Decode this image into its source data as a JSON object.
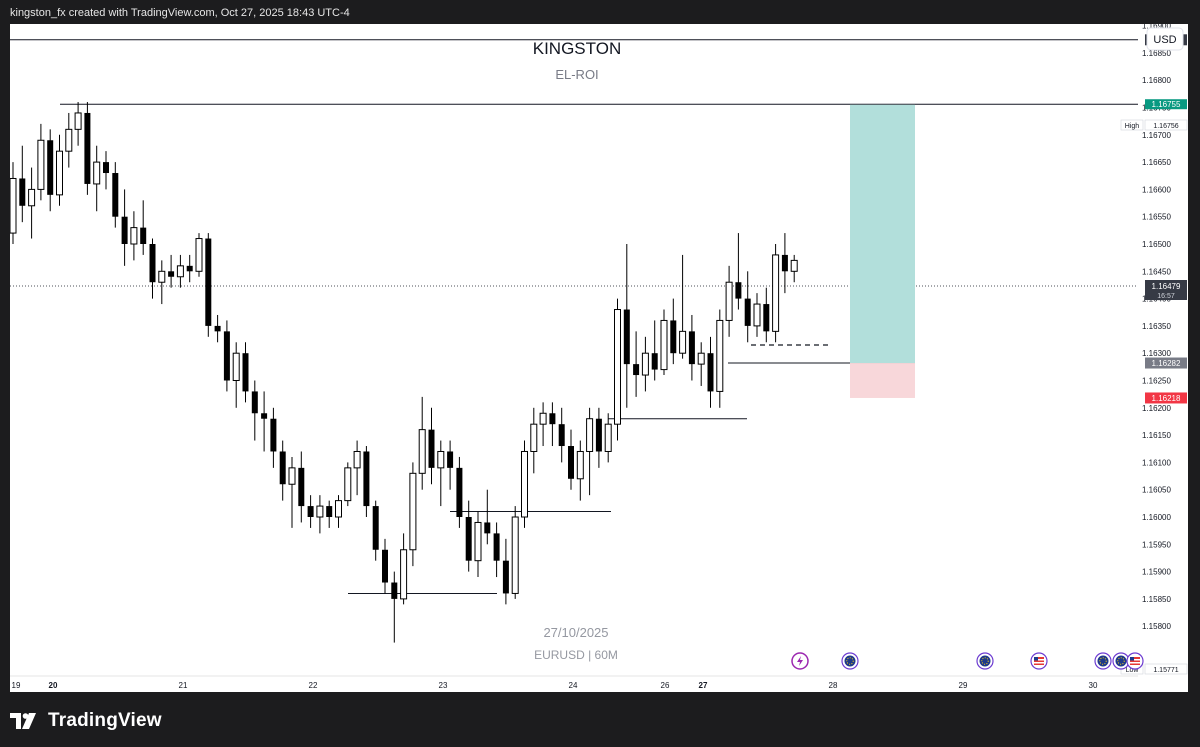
{
  "header": {
    "caption": "kingston_fx created with TradingView.com, Oct 27, 2025 18:43 UTC-4"
  },
  "chart_header": {
    "title": "KINGSTON",
    "subtitle": "EL-ROI",
    "currency_button": "USD"
  },
  "watermark": {
    "date": "27/10/2025",
    "symbol": "EURUSD | 60M"
  },
  "footer": {
    "brand": "TradingView"
  },
  "badges": {
    "top": "1.16874",
    "high_label": "High",
    "high_value": "1.16756",
    "target": "1.16755",
    "last_price": "1.16479",
    "countdown": "16:57",
    "entry": "1.16282",
    "stop": "1.16218",
    "low_label": "Low",
    "low_value": "1.15771"
  },
  "event_icons": [
    "lightning-icon",
    "globe-flag-icon",
    "globe-flag-icon",
    "us-flag-icon",
    "globe-flag-icon",
    "globe-flag-icon",
    "us-flag-icon"
  ],
  "chart_data": {
    "type": "candlestick",
    "symbol": "EURUSD",
    "timeframe": "60M",
    "y_axis": {
      "min": 1.1577,
      "max": 1.1695,
      "tick_labels": [
        "1.15800",
        "1.15850",
        "1.15900",
        "1.15950",
        "1.16000",
        "1.16050",
        "1.16100",
        "1.16150",
        "1.16200",
        "1.16250",
        "1.16300",
        "1.16350",
        "1.16400",
        "1.16450",
        "1.16500",
        "1.16550",
        "1.16600",
        "1.16650",
        "1.16700",
        "1.16750",
        "1.16800",
        "1.16850",
        "1.16900"
      ]
    },
    "x_axis": {
      "tick_labels": [
        "19",
        "20",
        "21",
        "22",
        "23",
        "24",
        "26",
        "27",
        "28",
        "29",
        "30"
      ],
      "bold_labels": [
        "20",
        "27"
      ]
    },
    "candles": [
      [
        1.1652,
        1.1665,
        1.165,
        1.1662
      ],
      [
        1.1662,
        1.1668,
        1.1654,
        1.1657
      ],
      [
        1.1657,
        1.1664,
        1.1651,
        1.166
      ],
      [
        1.166,
        1.1672,
        1.1658,
        1.1669
      ],
      [
        1.1669,
        1.1671,
        1.1656,
        1.1659
      ],
      [
        1.1659,
        1.167,
        1.1657,
        1.1667
      ],
      [
        1.1667,
        1.1674,
        1.1664,
        1.1671
      ],
      [
        1.1671,
        1.1676,
        1.1668,
        1.1674
      ],
      [
        1.1674,
        1.1676,
        1.1659,
        1.1661
      ],
      [
        1.1661,
        1.1668,
        1.1656,
        1.1665
      ],
      [
        1.1665,
        1.1667,
        1.166,
        1.1663
      ],
      [
        1.1663,
        1.1665,
        1.1653,
        1.1655
      ],
      [
        1.1655,
        1.166,
        1.1646,
        1.165
      ],
      [
        1.165,
        1.1656,
        1.1647,
        1.1653
      ],
      [
        1.1653,
        1.1658,
        1.1648,
        1.165
      ],
      [
        1.165,
        1.1651,
        1.164,
        1.1643
      ],
      [
        1.1643,
        1.1647,
        1.1639,
        1.1645
      ],
      [
        1.1645,
        1.1648,
        1.1642,
        1.1644
      ],
      [
        1.1644,
        1.1648,
        1.1642,
        1.1646
      ],
      [
        1.1646,
        1.1648,
        1.1643,
        1.1645
      ],
      [
        1.1645,
        1.1652,
        1.1644,
        1.1651
      ],
      [
        1.1651,
        1.1652,
        1.1633,
        1.1635
      ],
      [
        1.1635,
        1.1637,
        1.1632,
        1.1634
      ],
      [
        1.1634,
        1.1636,
        1.1623,
        1.1625
      ],
      [
        1.1625,
        1.1632,
        1.162,
        1.163
      ],
      [
        1.163,
        1.1632,
        1.1621,
        1.1623
      ],
      [
        1.1623,
        1.1625,
        1.1614,
        1.1619
      ],
      [
        1.1619,
        1.1623,
        1.1612,
        1.1618
      ],
      [
        1.1618,
        1.162,
        1.1609,
        1.1612
      ],
      [
        1.1612,
        1.1614,
        1.1603,
        1.1606
      ],
      [
        1.1606,
        1.1611,
        1.1598,
        1.1609
      ],
      [
        1.1609,
        1.1612,
        1.1599,
        1.1602
      ],
      [
        1.1602,
        1.1604,
        1.1598,
        1.16
      ],
      [
        1.16,
        1.1604,
        1.1597,
        1.1602
      ],
      [
        1.1602,
        1.1603,
        1.1598,
        1.16
      ],
      [
        1.16,
        1.1604,
        1.1598,
        1.1603
      ],
      [
        1.1603,
        1.161,
        1.1602,
        1.1609
      ],
      [
        1.1609,
        1.1614,
        1.1604,
        1.1612
      ],
      [
        1.1612,
        1.1613,
        1.16,
        1.1602
      ],
      [
        1.1602,
        1.1603,
        1.1592,
        1.1594
      ],
      [
        1.1594,
        1.1596,
        1.1586,
        1.1588
      ],
      [
        1.1588,
        1.159,
        1.1577,
        1.1585
      ],
      [
        1.1585,
        1.1597,
        1.1584,
        1.1594
      ],
      [
        1.1594,
        1.161,
        1.1591,
        1.1608
      ],
      [
        1.1608,
        1.1622,
        1.1605,
        1.1616
      ],
      [
        1.1616,
        1.162,
        1.1606,
        1.1609
      ],
      [
        1.1609,
        1.1614,
        1.1602,
        1.1612
      ],
      [
        1.1612,
        1.1614,
        1.1605,
        1.1609
      ],
      [
        1.1609,
        1.1611,
        1.1598,
        1.16
      ],
      [
        1.16,
        1.1603,
        1.159,
        1.1592
      ],
      [
        1.1592,
        1.1601,
        1.1589,
        1.1599
      ],
      [
        1.1599,
        1.1605,
        1.1595,
        1.1597
      ],
      [
        1.1597,
        1.1599,
        1.1589,
        1.1592
      ],
      [
        1.1592,
        1.1596,
        1.1584,
        1.1586
      ],
      [
        1.1586,
        1.1602,
        1.1585,
        1.16
      ],
      [
        1.16,
        1.1614,
        1.1598,
        1.1612
      ],
      [
        1.1612,
        1.162,
        1.1608,
        1.1617
      ],
      [
        1.1617,
        1.1621,
        1.1613,
        1.1619
      ],
      [
        1.1619,
        1.1621,
        1.1613,
        1.1617
      ],
      [
        1.1617,
        1.162,
        1.161,
        1.1613
      ],
      [
        1.1613,
        1.1616,
        1.1605,
        1.1607
      ],
      [
        1.1607,
        1.1614,
        1.1603,
        1.1612
      ],
      [
        1.1612,
        1.162,
        1.1604,
        1.1618
      ],
      [
        1.1618,
        1.162,
        1.1609,
        1.1612
      ],
      [
        1.1612,
        1.1619,
        1.161,
        1.1617
      ],
      [
        1.1617,
        1.164,
        1.1614,
        1.1638
      ],
      [
        1.1638,
        1.165,
        1.162,
        1.1628
      ],
      [
        1.1628,
        1.1634,
        1.1622,
        1.1626
      ],
      [
        1.1626,
        1.1633,
        1.1623,
        1.163
      ],
      [
        1.163,
        1.1636,
        1.1625,
        1.1627
      ],
      [
        1.1627,
        1.1638,
        1.1626,
        1.1636
      ],
      [
        1.1636,
        1.164,
        1.1628,
        1.163
      ],
      [
        1.163,
        1.1648,
        1.1629,
        1.1634
      ],
      [
        1.1634,
        1.1637,
        1.1625,
        1.1628
      ],
      [
        1.1628,
        1.1632,
        1.1624,
        1.163
      ],
      [
        1.163,
        1.1633,
        1.162,
        1.1623
      ],
      [
        1.1623,
        1.1638,
        1.162,
        1.1636
      ],
      [
        1.1636,
        1.1646,
        1.1633,
        1.1643
      ],
      [
        1.1643,
        1.1652,
        1.1638,
        1.164
      ],
      [
        1.164,
        1.1645,
        1.1632,
        1.1635
      ],
      [
        1.1635,
        1.1641,
        1.1633,
        1.1639
      ],
      [
        1.1639,
        1.1642,
        1.1632,
        1.1634
      ],
      [
        1.1634,
        1.165,
        1.1632,
        1.1648
      ],
      [
        1.1648,
        1.1652,
        1.1641,
        1.1645
      ],
      [
        1.1645,
        1.1648,
        1.1643,
        1.1647
      ]
    ],
    "levels": [
      {
        "name": "top-level",
        "price": 1.16874
      },
      {
        "name": "high-level",
        "price": 1.16756
      },
      {
        "name": "entry-level",
        "price": 1.16282
      },
      {
        "name": "support-line-1",
        "price": 1.1618
      },
      {
        "name": "support-line-2",
        "price": 1.1601
      },
      {
        "name": "swing-low-line",
        "price": 1.1586
      },
      {
        "name": "dashed-liquidity-line",
        "price": 1.16315
      }
    ],
    "position": {
      "entry": 1.16282,
      "target": 1.16755,
      "stop": 1.16218
    },
    "colors": {
      "candle": "#000000",
      "profit_zone": "#b2dfdb",
      "loss_zone": "#f8d7da",
      "target_badge": "#089981",
      "stop_badge": "#f23645",
      "entry_badge": "#787b86",
      "last_price_badge": "#363a45"
    }
  }
}
